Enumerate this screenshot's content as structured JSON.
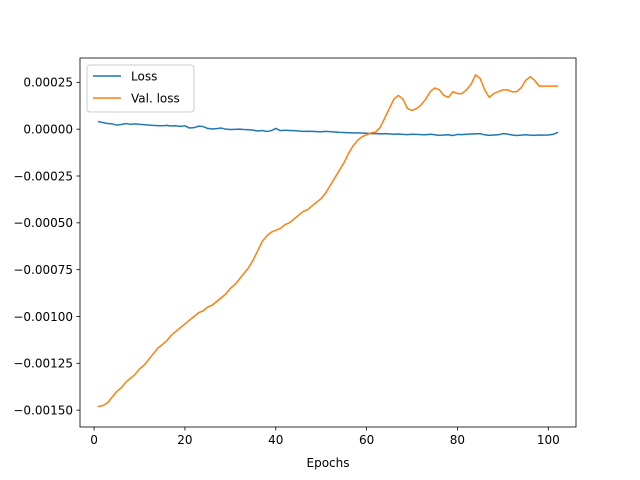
{
  "chart_data": {
    "type": "line",
    "title": "",
    "xlabel": "Epochs",
    "ylabel": "",
    "xlim": [
      -3.1,
      106.1
    ],
    "ylim": [
      -0.00159,
      0.00038
    ],
    "xticks": [
      0,
      20,
      40,
      60,
      80,
      100
    ],
    "yticks": [
      0.00025,
      0.0,
      -0.00025,
      -0.0005,
      -0.00075,
      -0.001,
      -0.00125,
      -0.0015
    ],
    "ytick_labels": [
      "0.00025",
      "0.00000",
      "−0.00025",
      "−0.00050",
      "−0.00075",
      "−0.00100",
      "−0.00125",
      "−0.00150"
    ],
    "grid": false,
    "legend_position": "upper-left",
    "series": [
      {
        "name": "Loss",
        "color": "#1f77b4",
        "x": [
          1,
          2,
          3,
          4,
          5,
          6,
          7,
          8,
          9,
          10,
          11,
          12,
          13,
          14,
          15,
          16,
          17,
          18,
          19,
          20,
          21,
          22,
          23,
          24,
          25,
          26,
          27,
          28,
          29,
          30,
          31,
          32,
          33,
          34,
          35,
          36,
          37,
          38,
          39,
          40,
          41,
          42,
          43,
          44,
          45,
          46,
          47,
          48,
          49,
          50,
          51,
          52,
          53,
          54,
          55,
          56,
          57,
          58,
          59,
          60,
          61,
          62,
          63,
          64,
          65,
          66,
          67,
          68,
          69,
          70,
          71,
          72,
          73,
          74,
          75,
          76,
          77,
          78,
          79,
          80,
          81,
          82,
          83,
          84,
          85,
          86,
          87,
          88,
          89,
          90,
          91,
          92,
          93,
          94,
          95,
          96,
          97,
          98,
          99,
          100,
          101,
          102
        ],
        "values": [
          4e-05,
          3.5e-05,
          3e-05,
          2.8e-05,
          2.2e-05,
          2.5e-05,
          3e-05,
          2.6e-05,
          2.8e-05,
          2.6e-05,
          2.4e-05,
          2.2e-05,
          2e-05,
          1.9e-05,
          1.8e-05,
          2e-05,
          1.7e-05,
          1.8e-05,
          1.5e-05,
          1.8e-05,
          6e-06,
          8e-06,
          1.6e-05,
          1.4e-05,
          4e-06,
          1e-06,
          3e-06,
          6e-06,
          0.0,
          -2e-06,
          -1e-06,
          0.0,
          -2e-06,
          -3e-06,
          -5e-06,
          -1e-05,
          -7e-06,
          -1.2e-05,
          -8e-06,
          4e-06,
          -8e-06,
          -6e-06,
          -7e-06,
          -8e-06,
          -1e-05,
          -1.2e-05,
          -1.1e-05,
          -1.2e-05,
          -1.3e-05,
          -1.4e-05,
          -1.2e-05,
          -1.3e-05,
          -1.5e-05,
          -1.7e-05,
          -1.8e-05,
          -1.9e-05,
          -2e-05,
          -2e-05,
          -2.1e-05,
          -2.2e-05,
          -2.4e-05,
          -2.3e-05,
          -2.5e-05,
          -2.4e-05,
          -2.5e-05,
          -2.7e-05,
          -2.6e-05,
          -2.8e-05,
          -2.9e-05,
          -2.7e-05,
          -2.8e-05,
          -2.9e-05,
          -3e-05,
          -2.7e-05,
          -3e-05,
          -3.3e-05,
          -3.1e-05,
          -3e-05,
          -3.4e-05,
          -2.8e-05,
          -2.9e-05,
          -2.7e-05,
          -2.6e-05,
          -2.5e-05,
          -2.4e-05,
          -3e-05,
          -3.3e-05,
          -3.1e-05,
          -3e-05,
          -2.4e-05,
          -2.6e-05,
          -3.1e-05,
          -3.4e-05,
          -3.2e-05,
          -3e-05,
          -3.2e-05,
          -3.3e-05,
          -3.1e-05,
          -3.2e-05,
          -3.1e-05,
          -2.8e-05,
          -1.8e-05
        ]
      },
      {
        "name": "Val. loss",
        "color": "#ff7f0e",
        "x": [
          1,
          2,
          3,
          4,
          5,
          6,
          7,
          8,
          9,
          10,
          11,
          12,
          13,
          14,
          15,
          16,
          17,
          18,
          19,
          20,
          21,
          22,
          23,
          24,
          25,
          26,
          27,
          28,
          29,
          30,
          31,
          32,
          33,
          34,
          35,
          36,
          37,
          38,
          39,
          40,
          41,
          42,
          43,
          44,
          45,
          46,
          47,
          48,
          49,
          50,
          51,
          52,
          53,
          54,
          55,
          56,
          57,
          58,
          59,
          60,
          61,
          62,
          63,
          64,
          65,
          66,
          67,
          68,
          69,
          70,
          71,
          72,
          73,
          74,
          75,
          76,
          77,
          78,
          79,
          80,
          81,
          82,
          83,
          84,
          85,
          86,
          87,
          88,
          89,
          90,
          91,
          92,
          93,
          94,
          95,
          96,
          97,
          98,
          99,
          100,
          101,
          102
        ],
        "values": [
          -0.00148,
          -0.001475,
          -0.00146,
          -0.00143,
          -0.0014,
          -0.00138,
          -0.00135,
          -0.00133,
          -0.00131,
          -0.00128,
          -0.00126,
          -0.00123,
          -0.0012,
          -0.00117,
          -0.00115,
          -0.00113,
          -0.0011,
          -0.00108,
          -0.00106,
          -0.00104,
          -0.00102,
          -0.001,
          -0.00098,
          -0.00097,
          -0.00095,
          -0.00094,
          -0.00092,
          -0.0009,
          -0.00088,
          -0.00085,
          -0.00083,
          -0.0008,
          -0.00077,
          -0.00074,
          -0.0007,
          -0.00065,
          -0.0006,
          -0.00057,
          -0.00055,
          -0.00054,
          -0.00053,
          -0.00051,
          -0.0005,
          -0.00048,
          -0.00046,
          -0.00044,
          -0.00043,
          -0.00041,
          -0.00039,
          -0.00037,
          -0.00034,
          -0.0003,
          -0.00026,
          -0.00022,
          -0.00018,
          -0.00013,
          -9e-05,
          -6e-05,
          -4e-05,
          -3e-05,
          -2e-05,
          -1.5e-05,
          1e-05,
          6e-05,
          0.00011,
          0.00016,
          0.00018,
          0.00016,
          0.00011,
          0.0001,
          0.00011,
          0.00013,
          0.00016,
          0.0002,
          0.00022,
          0.00021,
          0.00018,
          0.00017,
          0.0002,
          0.00019,
          0.00019,
          0.00021,
          0.00024,
          0.00029,
          0.00027,
          0.00021,
          0.00017,
          0.00019,
          0.0002,
          0.00021,
          0.00021,
          0.0002,
          0.0002,
          0.00022,
          0.00026,
          0.00028,
          0.00026,
          0.00023,
          0.00023,
          0.00023,
          0.00023,
          0.00023
        ]
      }
    ]
  }
}
